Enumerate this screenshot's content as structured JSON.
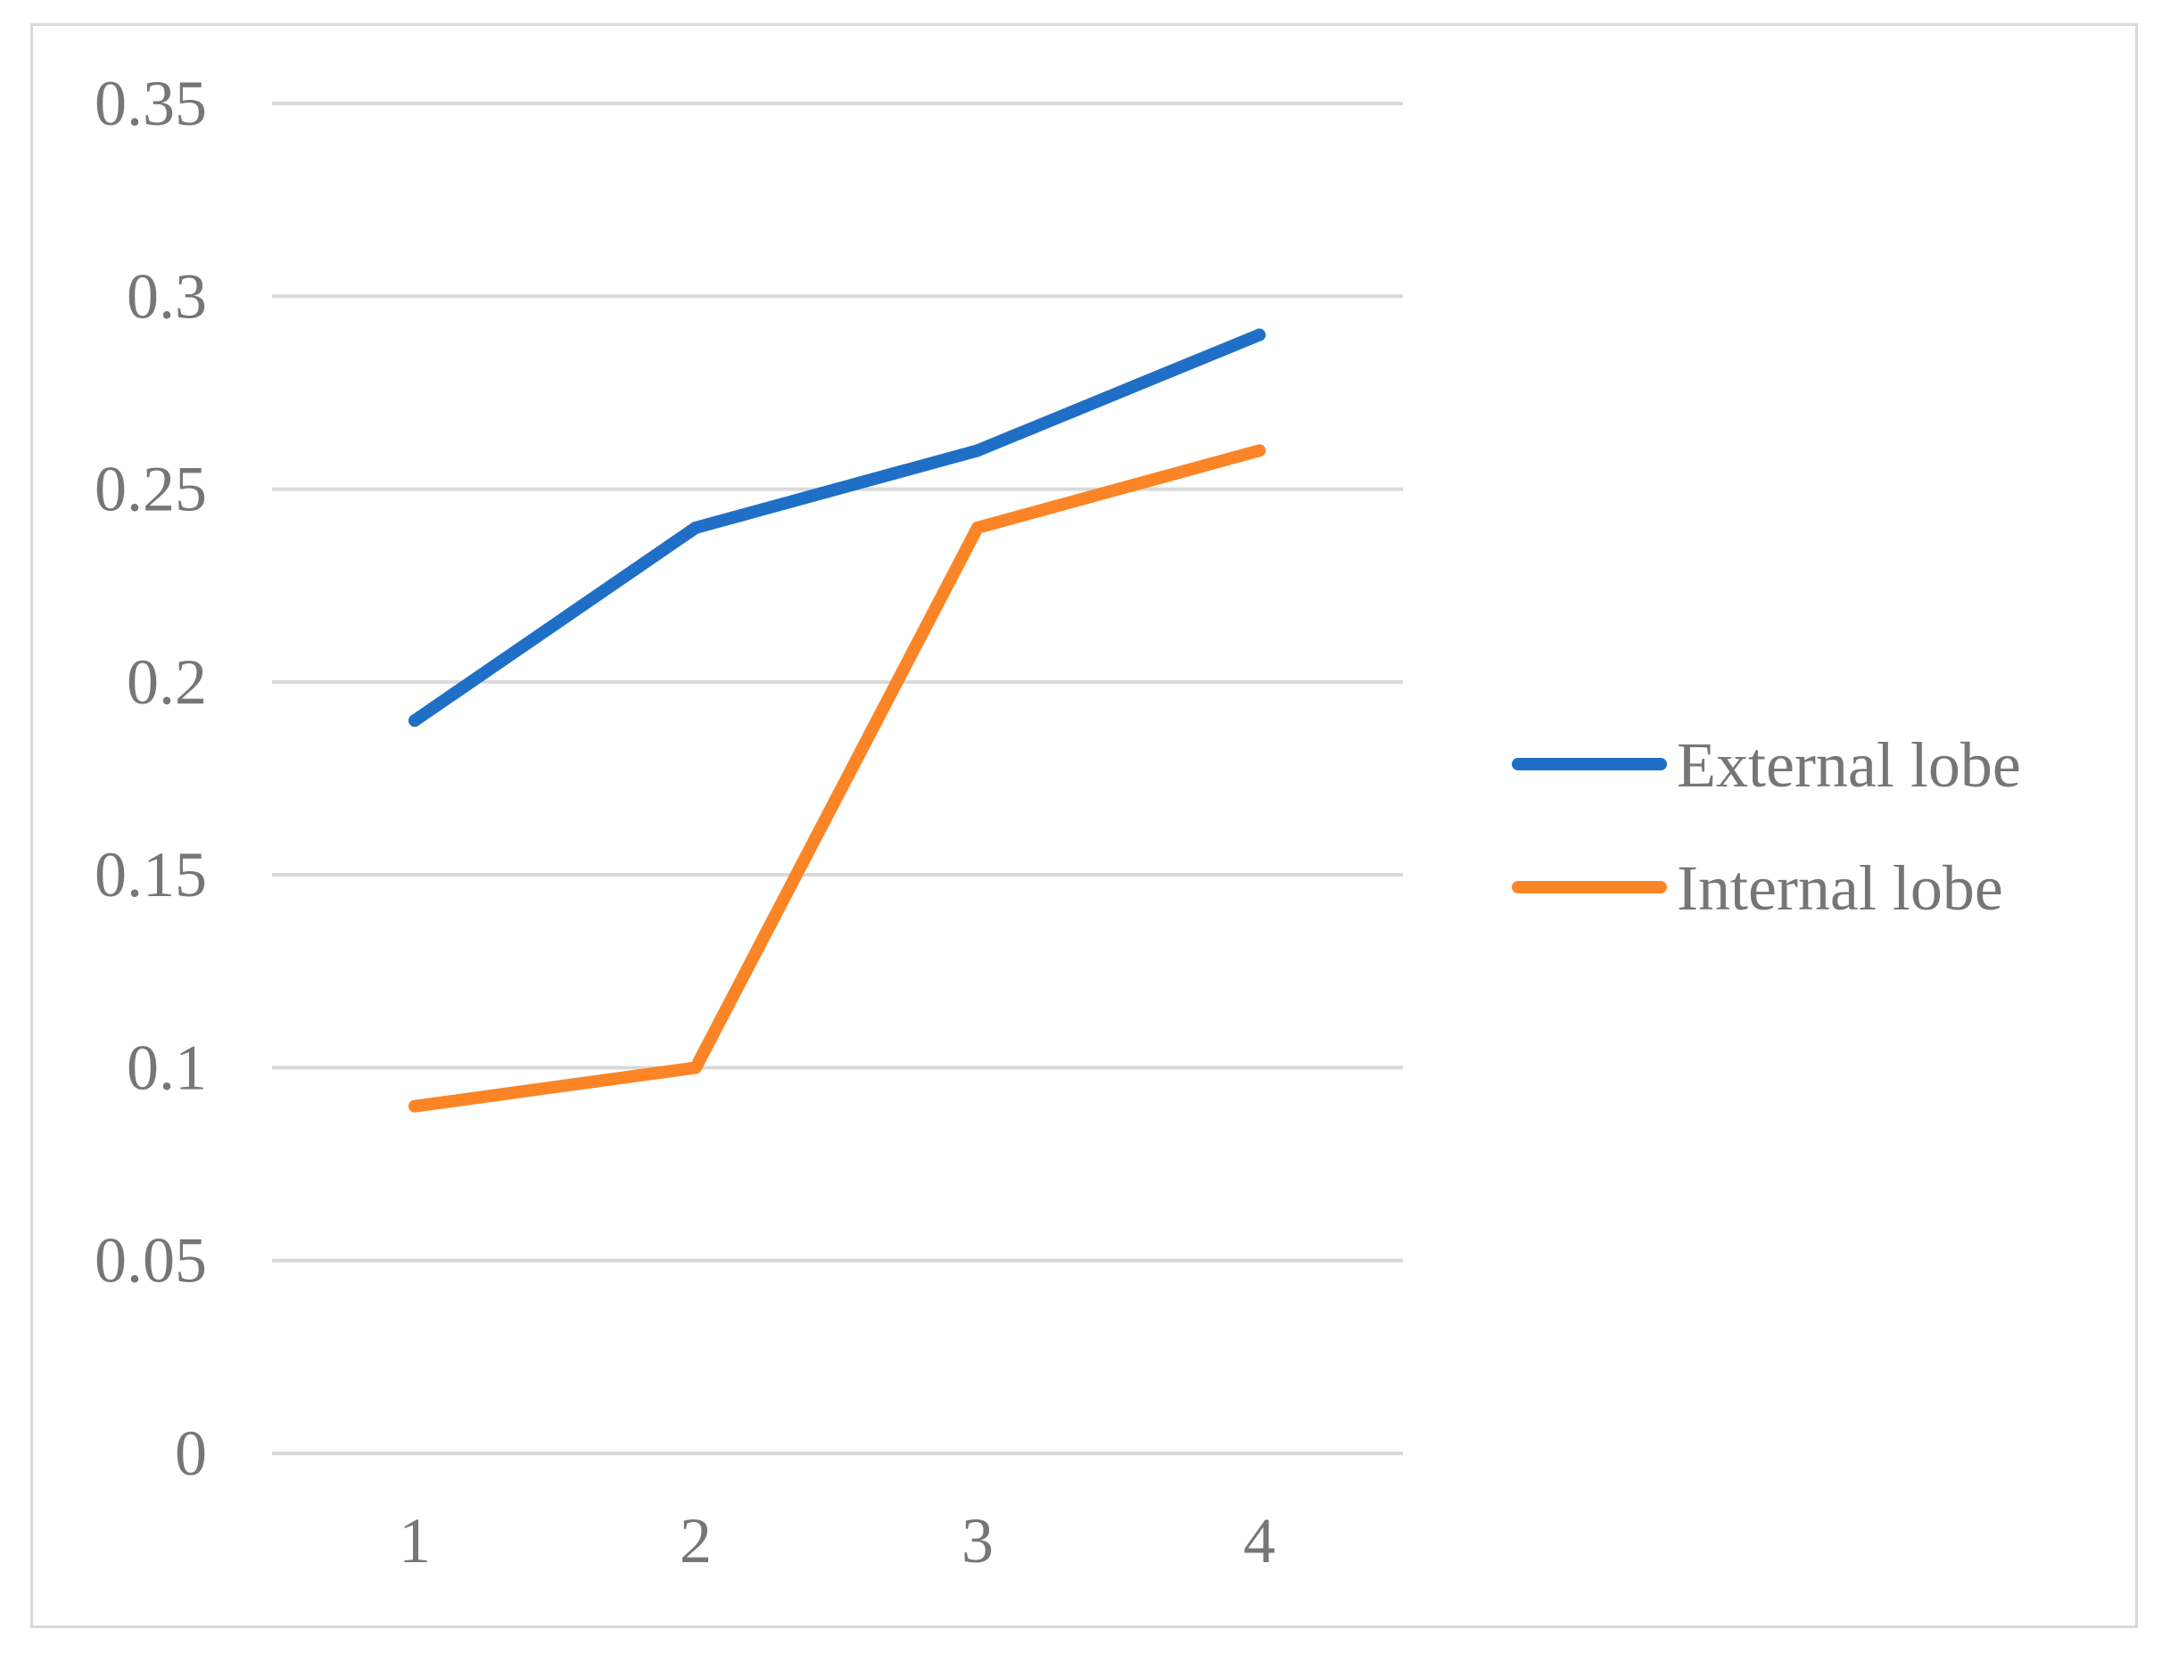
{
  "chart_data": {
    "type": "line",
    "title": "",
    "xlabel": "",
    "ylabel": "",
    "categories": [
      "1",
      "2",
      "3",
      "4"
    ],
    "ylim": [
      0,
      0.35
    ],
    "yticks": [
      0,
      0.05,
      0.1,
      0.15,
      0.2,
      0.25,
      0.3,
      0.35
    ],
    "ytick_labels": [
      "0",
      "0.05",
      "0.1",
      "0.15",
      "0.2",
      "0.25",
      "0.3",
      "0.35"
    ],
    "grid": true,
    "legend_position": "right",
    "series": [
      {
        "name": "External lobe",
        "color": "#1f6fc6",
        "values": [
          0.19,
          0.24,
          0.26,
          0.29
        ]
      },
      {
        "name": "Internal lobe",
        "color": "#fb8526",
        "values": [
          0.09,
          0.1,
          0.24,
          0.26
        ]
      }
    ]
  }
}
